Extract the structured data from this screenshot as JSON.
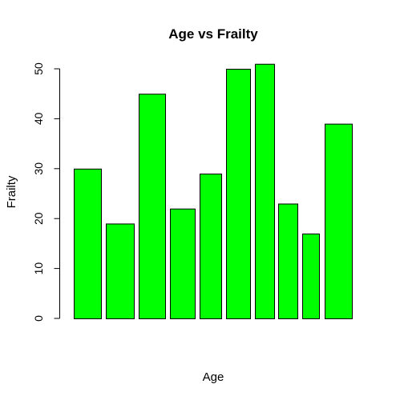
{
  "chart_data": {
    "type": "bar",
    "title": "Age vs Frailty",
    "xlabel": "Age",
    "ylabel": "Frailty",
    "values": [
      30,
      19,
      45,
      22,
      29,
      50,
      51,
      23,
      17,
      39
    ],
    "bar_color": "#00ff00",
    "ylim": [
      0,
      52
    ],
    "yticks": [
      0,
      10,
      20,
      30,
      40,
      50
    ],
    "ytick_labels": [
      "0",
      "10",
      "20",
      "30",
      "40",
      "50"
    ],
    "grid": false,
    "legend": "none"
  }
}
